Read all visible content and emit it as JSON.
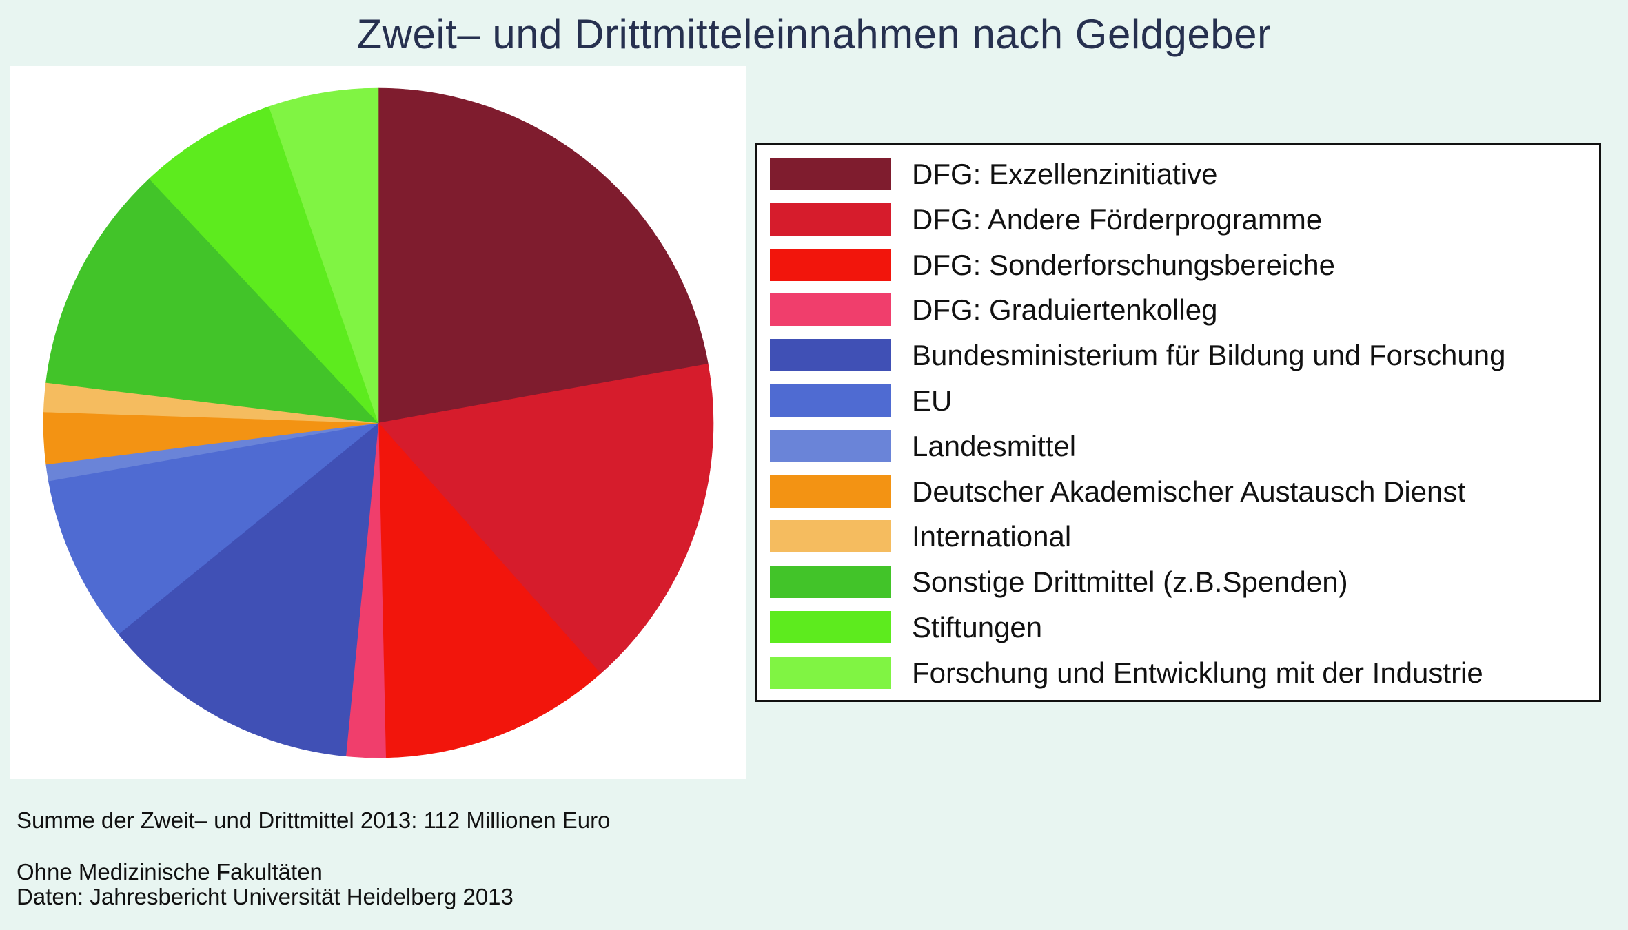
{
  "chart_data": {
    "type": "pie",
    "title": "Zweit– und Drittmitteleinnahmen nach Geldgeber",
    "unit": "percent (estimated from slice angles)",
    "start_angle": "12 o'clock, clockwise",
    "legend_position": "right",
    "slices": [
      {
        "label": "DFG: Exzellenzinitiative",
        "value": 22.2,
        "color": "#7f1c2e"
      },
      {
        "label": "DFG: Andere Förderprogramme",
        "value": 16.3,
        "color": "#d61c2c"
      },
      {
        "label": "DFG: Sonderforschungsbereiche",
        "value": 11.2,
        "color": "#f2150c"
      },
      {
        "label": "DFG: Graduiertenkolleg",
        "value": 1.9,
        "color": "#f03e6c"
      },
      {
        "label": "Bundesministerium für Bildung und Forschung",
        "value": 12.6,
        "color": "#4050b5"
      },
      {
        "label": "EU",
        "value": 8.1,
        "color": "#4f6bd2"
      },
      {
        "label": "Landesmittel",
        "value": 0.8,
        "color": "#6a84d8"
      },
      {
        "label": "Deutscher Akademischer Austausch Dienst",
        "value": 2.5,
        "color": "#f39313"
      },
      {
        "label": "International",
        "value": 1.4,
        "color": "#f5bc5f"
      },
      {
        "label": "Sonstige Drittmittel (z.B.Spenden)",
        "value": 11.1,
        "color": "#42c429"
      },
      {
        "label": "Stiftungen",
        "value": 6.7,
        "color": "#5deb1e"
      },
      {
        "label": "Forschung und Entwicklung mit der Industrie",
        "value": 5.3,
        "color": "#80f443"
      }
    ]
  },
  "footer": {
    "total": "Summe der Zweit– und Drittmittel 2013: 112 Millionen Euro",
    "note": "Ohne Medizinische Fakultäten",
    "source": "Daten: Jahresbericht Universität Heidelberg 2013"
  }
}
